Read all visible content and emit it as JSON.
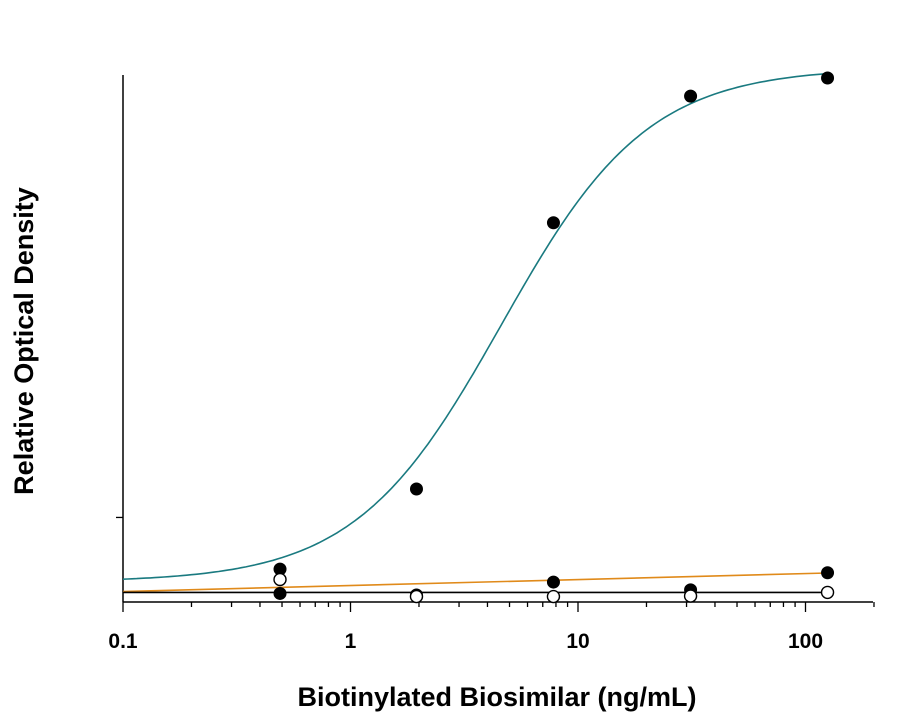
{
  "chart_data": {
    "type": "scatter",
    "title": "",
    "xlabel": "Biotinylated Biosimilar (ng/mL)",
    "ylabel": "Relative Optical Density",
    "x_scale": "log",
    "xlim": [
      0.1,
      200
    ],
    "ylim": [
      0,
      1
    ],
    "x_ticks": [
      {
        "value": 0.1,
        "label": "0.1"
      },
      {
        "value": 1,
        "label": "1"
      },
      {
        "value": 10,
        "label": "10"
      },
      {
        "value": 100,
        "label": "100"
      }
    ],
    "y_tick_values": [
      0.15
    ],
    "grid": false,
    "legend": "none",
    "series": [
      {
        "marker": "filled",
        "color": "#1a7a80",
        "x": [
          0.49,
          1.95,
          7.8,
          31.25,
          125
        ],
        "y": [
          0.05,
          0.205,
          0.72,
          0.965,
          1.0
        ],
        "fit": "sigmoid"
      },
      {
        "marker": "filled",
        "color": "#e08a1a",
        "x": [
          0.49,
          1.95,
          7.8,
          31.25,
          125
        ],
        "y": [
          0.003,
          0.0,
          0.025,
          0.01,
          0.043
        ],
        "fit": "linear"
      },
      {
        "marker": "open",
        "color": "#000000",
        "x": [
          0.49,
          1.95,
          7.8,
          31.25,
          125
        ],
        "y": [
          0.03,
          -0.003,
          -0.003,
          -0.002,
          0.005
        ],
        "fit": "flat"
      }
    ]
  }
}
